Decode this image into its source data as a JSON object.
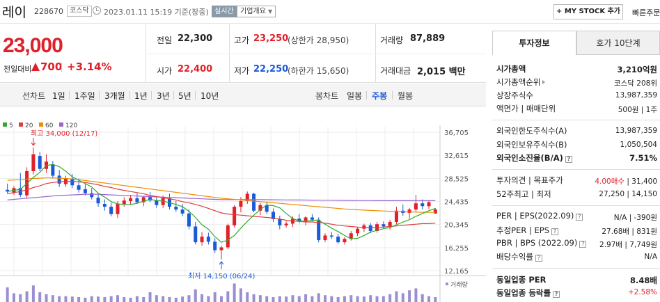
{
  "header": {
    "stock_name": "레이",
    "stock_code": "228670",
    "market": "코스닥",
    "date_time": "2023.01.11 15:19 기준(장중)",
    "realtime_label": "실시간",
    "company_info_label": "기업개요",
    "mystock_label": "MY STOCK 추가",
    "quick_order_label": "빠른주문"
  },
  "price": {
    "current": "23,000",
    "change_label": "전일대비",
    "change_value": "700",
    "change_pct": "+3.14%",
    "prev_close_label": "전일",
    "prev_close": "22,300",
    "high_label": "고가",
    "high": "23,250",
    "upper_limit": "(상한가 28,950)",
    "volume_label": "거래량",
    "volume": "87,889",
    "open_label": "시가",
    "open": "22,400",
    "low_label": "저가",
    "low": "22,250",
    "lower_limit": "(하한가 15,650)",
    "amount_label": "거래대금",
    "amount": "2,015 백만"
  },
  "range_bar": {
    "line_chart_title": "선차트",
    "line_ranges": [
      "1일",
      "1주일",
      "3개월",
      "1년",
      "3년",
      "5년",
      "10년"
    ],
    "candle_chart_title": "봉차트",
    "candle_ranges": [
      "일봉",
      "주봉",
      "월봉"
    ],
    "active_candle": "주봉"
  },
  "colors": {
    "up": "#e0202a",
    "down": "#1a5ad8",
    "ma5": "#2eaa2e",
    "ma20": "#e03c3c",
    "ma60": "#f08c00",
    "ma120": "#9966cc"
  },
  "chart_data": {
    "type": "candlestick",
    "legend": [
      "5",
      "20",
      "60",
      "120"
    ],
    "y_ticks": [
      "36,705",
      "32,615",
      "28,525",
      "24,435",
      "20,345",
      "16,255",
      "12,165"
    ],
    "ylim": [
      12165,
      36705
    ],
    "high_annotation": "최고 34,000 (12/17)",
    "low_annotation": "최저 14,150 (06/24)",
    "volume_label": "거래량",
    "candles": [
      {
        "o": 26500,
        "h": 27600,
        "l": 25800,
        "c": 26200
      },
      {
        "o": 26000,
        "h": 27200,
        "l": 25600,
        "c": 26800
      },
      {
        "o": 26800,
        "h": 29500,
        "l": 25200,
        "c": 25600
      },
      {
        "o": 25500,
        "h": 30500,
        "l": 25000,
        "c": 29800
      },
      {
        "o": 29800,
        "h": 34000,
        "l": 29200,
        "c": 32800
      },
      {
        "o": 32500,
        "h": 33200,
        "l": 29800,
        "c": 30200
      },
      {
        "o": 30200,
        "h": 32800,
        "l": 29500,
        "c": 31500
      },
      {
        "o": 31000,
        "h": 31600,
        "l": 28500,
        "c": 29000
      },
      {
        "o": 29000,
        "h": 30000,
        "l": 27000,
        "c": 27600
      },
      {
        "o": 27500,
        "h": 29000,
        "l": 27000,
        "c": 28500
      },
      {
        "o": 28500,
        "h": 29300,
        "l": 26800,
        "c": 27300
      },
      {
        "o": 27300,
        "h": 28500,
        "l": 26000,
        "c": 26500
      },
      {
        "o": 26600,
        "h": 27500,
        "l": 25500,
        "c": 25900
      },
      {
        "o": 25900,
        "h": 26800,
        "l": 24800,
        "c": 25200
      },
      {
        "o": 25100,
        "h": 25900,
        "l": 23500,
        "c": 24100
      },
      {
        "o": 24000,
        "h": 24800,
        "l": 22800,
        "c": 23500
      },
      {
        "o": 23500,
        "h": 24200,
        "l": 21800,
        "c": 22200
      },
      {
        "o": 22200,
        "h": 24500,
        "l": 21500,
        "c": 24000
      },
      {
        "o": 24000,
        "h": 25200,
        "l": 23500,
        "c": 24600
      },
      {
        "o": 24500,
        "h": 25600,
        "l": 23800,
        "c": 25000
      },
      {
        "o": 25000,
        "h": 25900,
        "l": 24000,
        "c": 24300
      },
      {
        "o": 24300,
        "h": 25400,
        "l": 23600,
        "c": 25200
      },
      {
        "o": 25200,
        "h": 26100,
        "l": 24300,
        "c": 24600
      },
      {
        "o": 24600,
        "h": 25300,
        "l": 23300,
        "c": 23800
      },
      {
        "o": 23800,
        "h": 25500,
        "l": 23300,
        "c": 25000
      },
      {
        "o": 25000,
        "h": 25800,
        "l": 23000,
        "c": 23500
      },
      {
        "o": 23500,
        "h": 24500,
        "l": 22600,
        "c": 23000
      },
      {
        "o": 23000,
        "h": 24000,
        "l": 21800,
        "c": 22300
      },
      {
        "o": 22300,
        "h": 23000,
        "l": 19500,
        "c": 20000
      },
      {
        "o": 20000,
        "h": 20800,
        "l": 16800,
        "c": 17200
      },
      {
        "o": 17200,
        "h": 19000,
        "l": 16600,
        "c": 18200
      },
      {
        "o": 18200,
        "h": 18900,
        "l": 16800,
        "c": 17300
      },
      {
        "o": 17300,
        "h": 17900,
        "l": 15300,
        "c": 15800
      },
      {
        "o": 15800,
        "h": 16600,
        "l": 14150,
        "c": 16300
      },
      {
        "o": 16300,
        "h": 20500,
        "l": 16000,
        "c": 20200
      },
      {
        "o": 20200,
        "h": 23800,
        "l": 19800,
        "c": 23500
      },
      {
        "o": 23500,
        "h": 25200,
        "l": 22500,
        "c": 24500
      },
      {
        "o": 24500,
        "h": 26200,
        "l": 24000,
        "c": 25800
      },
      {
        "o": 25800,
        "h": 26000,
        "l": 22500,
        "c": 22800
      },
      {
        "o": 22800,
        "h": 24200,
        "l": 22000,
        "c": 23800
      },
      {
        "o": 23800,
        "h": 24400,
        "l": 22200,
        "c": 22600
      },
      {
        "o": 22600,
        "h": 23200,
        "l": 20800,
        "c": 21300
      },
      {
        "o": 21300,
        "h": 21900,
        "l": 19500,
        "c": 20200
      },
      {
        "o": 20200,
        "h": 20900,
        "l": 19800,
        "c": 20500
      },
      {
        "o": 20500,
        "h": 21800,
        "l": 19900,
        "c": 21400
      },
      {
        "o": 21400,
        "h": 22200,
        "l": 20600,
        "c": 21000
      },
      {
        "o": 21000,
        "h": 21800,
        "l": 20200,
        "c": 21600
      },
      {
        "o": 21600,
        "h": 22200,
        "l": 20900,
        "c": 21200
      },
      {
        "o": 21200,
        "h": 21600,
        "l": 17200,
        "c": 17600
      },
      {
        "o": 17600,
        "h": 18800,
        "l": 17200,
        "c": 18400
      },
      {
        "o": 18400,
        "h": 19000,
        "l": 17800,
        "c": 18200
      },
      {
        "o": 18200,
        "h": 18700,
        "l": 16900,
        "c": 17200
      },
      {
        "o": 17200,
        "h": 18100,
        "l": 16800,
        "c": 17800
      },
      {
        "o": 17800,
        "h": 19200,
        "l": 17500,
        "c": 18800
      },
      {
        "o": 18800,
        "h": 19800,
        "l": 18300,
        "c": 19600
      },
      {
        "o": 19600,
        "h": 20500,
        "l": 19000,
        "c": 20200
      },
      {
        "o": 20200,
        "h": 20600,
        "l": 18800,
        "c": 19200
      },
      {
        "o": 19200,
        "h": 20800,
        "l": 18900,
        "c": 20400
      },
      {
        "o": 20400,
        "h": 20900,
        "l": 19600,
        "c": 20000
      },
      {
        "o": 20000,
        "h": 21200,
        "l": 19400,
        "c": 20800
      },
      {
        "o": 20800,
        "h": 23500,
        "l": 20400,
        "c": 22800
      },
      {
        "o": 22800,
        "h": 23900,
        "l": 21900,
        "c": 22400
      },
      {
        "o": 22400,
        "h": 23300,
        "l": 21400,
        "c": 23000
      },
      {
        "o": 23000,
        "h": 25600,
        "l": 22600,
        "c": 24100
      },
      {
        "o": 24100,
        "h": 24800,
        "l": 23000,
        "c": 23600
      },
      {
        "o": 23600,
        "h": 24600,
        "l": 23100,
        "c": 24300
      },
      {
        "o": 22300,
        "h": 23250,
        "l": 22250,
        "c": 23000
      }
    ],
    "ma5": [
      26200,
      26400,
      26600,
      27600,
      28700,
      29600,
      30800,
      31000,
      30600,
      29800,
      28800,
      28200,
      27600,
      27000,
      25900,
      25200,
      24400,
      24000,
      23900,
      23900,
      24100,
      24500,
      24800,
      24600,
      24500,
      24200,
      23900,
      23500,
      22700,
      21600,
      20300,
      19500,
      18200,
      17200,
      17600,
      18400,
      19700,
      20900,
      22000,
      23000,
      23800,
      23700,
      23300,
      22300,
      21400,
      21000,
      20900,
      21100,
      21100,
      20400,
      19700,
      19100,
      18400,
      17800,
      17900,
      18400,
      19000,
      19300,
      19600,
      19800,
      20300,
      20800,
      21200,
      21800,
      22300,
      22800,
      23200
    ],
    "ma20": [
      25800,
      26000,
      26200,
      26500,
      26900,
      27200,
      27600,
      27800,
      27900,
      28000,
      28000,
      27900,
      27800,
      27600,
      27400,
      27100,
      26900,
      26600,
      26400,
      26200,
      26000,
      25800,
      25500,
      25300,
      25100,
      24900,
      24700,
      24400,
      24200,
      23900,
      23600,
      23200,
      22800,
      22400,
      22200,
      22100,
      22000,
      21900,
      21800,
      21700,
      21600,
      21500,
      21300,
      21100,
      21000,
      20900,
      20800,
      20800,
      20700,
      20600,
      20400,
      20200,
      20100,
      20000,
      19900,
      19800,
      19800,
      19800,
      19900,
      20000,
      20100,
      20200,
      20300,
      20400,
      20500,
      20500,
      20600
    ],
    "ma60": [
      28200,
      28250,
      28300,
      28400,
      28500,
      28550,
      28600,
      28600,
      28550,
      28500,
      28400,
      28300,
      28150,
      28000,
      27850,
      27700,
      27550,
      27400,
      27250,
      27100,
      26950,
      26800,
      26650,
      26500,
      26350,
      26200,
      26050,
      25900,
      25750,
      25600,
      25450,
      25300,
      25150,
      25000,
      24900,
      24800,
      24700,
      24600,
      24500,
      24400,
      24300,
      24200,
      24100,
      24000,
      23900,
      23800,
      23700,
      23600,
      23500,
      23400,
      23300,
      23200,
      23100,
      23000,
      22950,
      22900,
      22850,
      22800,
      22750,
      22700,
      22650,
      22600,
      22580,
      22550,
      22520,
      22500,
      22500
    ],
    "ma120": [
      24700,
      24800,
      24900,
      25000,
      25100,
      25200,
      25300,
      25400,
      25500,
      25550,
      25600,
      25650,
      25700,
      25700,
      25700,
      25650,
      25600,
      25550,
      25500,
      25450,
      25400,
      25350,
      25300,
      25250,
      25200,
      25150,
      25100,
      25050,
      25000,
      24950,
      24900,
      24850,
      24800,
      24750,
      24750,
      24750,
      24750,
      24750,
      24750,
      24750,
      24740,
      24730,
      24720,
      24710,
      24700,
      24690,
      24680,
      24670,
      24660,
      24650,
      24640,
      24630,
      24620,
      24610,
      24600,
      24590,
      24580,
      24570,
      24570,
      24570,
      24570,
      24570,
      24570,
      24570,
      24570,
      24570,
      24570
    ],
    "volumes": [
      0.75,
      0.45,
      0.4,
      0.55,
      0.85,
      0.5,
      0.4,
      0.35,
      0.3,
      0.3,
      0.28,
      0.25,
      0.22,
      0.3,
      0.28,
      0.25,
      0.3,
      0.35,
      0.25,
      0.22,
      0.3,
      0.25,
      0.5,
      0.35,
      0.3,
      0.25,
      0.22,
      0.28,
      0.35,
      0.65,
      0.4,
      0.3,
      0.5,
      0.3,
      0.55,
      0.95,
      0.7,
      0.5,
      0.4,
      0.35,
      0.3,
      0.25,
      0.3,
      0.28,
      0.35,
      0.3,
      0.4,
      0.3,
      0.45,
      0.35,
      0.3,
      0.25,
      0.3,
      0.35,
      0.3,
      0.28,
      0.35,
      0.3,
      0.3,
      0.4,
      0.55,
      0.45,
      0.6,
      0.7,
      0.4,
      0.3,
      0.25
    ]
  },
  "side": {
    "tab_info": "투자정보",
    "tab_hoga": "호가 10단계",
    "rows": [
      {
        "label": "시가총액",
        "value": "3,210억원"
      },
      {
        "label": "시가총액순위",
        "value": "코스닥 208위"
      },
      {
        "label": "상장주식수",
        "value": "13,987,359"
      },
      {
        "label": "액면가 | 매매단위",
        "value": "500원 | 1주"
      },
      {
        "label": "외국인한도주식수(A)",
        "value": "13,987,359"
      },
      {
        "label": "외국인보유주식수(B)",
        "value": "1,050,504"
      },
      {
        "label": "외국인소진율(B/A)",
        "value": "7.51%"
      },
      {
        "label": "투자의견 | 목표주가",
        "opinion": "4.00매수",
        "value": " | 31,400"
      },
      {
        "label": "52주최고 | 최저",
        "value": "27,250 | 14,150"
      },
      {
        "label": "PER | EPS(2022.09)",
        "value": "N/A | -390원"
      },
      {
        "label": "추정PER | EPS",
        "value": "27.68배 | 831원"
      },
      {
        "label": "PBR | BPS (2022.09)",
        "value": "2.97배 | 7,749원"
      },
      {
        "label": "배당수익률",
        "value": "N/A"
      },
      {
        "label": "동일업종 PER",
        "value": "8.48배"
      },
      {
        "label": "동일업종 등락률",
        "value": "+2.58%"
      }
    ]
  }
}
